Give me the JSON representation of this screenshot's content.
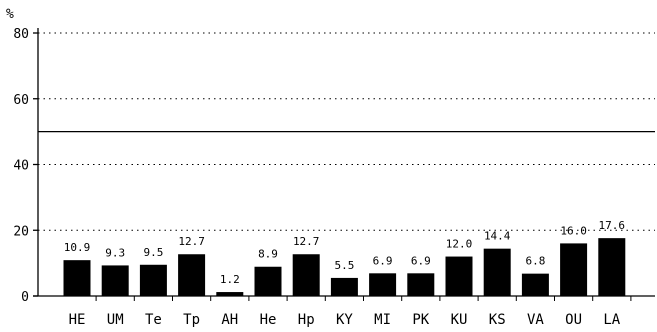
{
  "chart_data": {
    "type": "bar",
    "title": "",
    "xlabel": "",
    "ylabel": "%",
    "ylim": [
      0,
      80
    ],
    "yticks": [
      0,
      20,
      40,
      60,
      80
    ],
    "grid": "horizontal dotted",
    "reference_line": 50,
    "categories": [
      "HE",
      "UM",
      "Te",
      "Tp",
      "AH",
      "He",
      "Hp",
      "KY",
      "MI",
      "PK",
      "KU",
      "KS",
      "VA",
      "OU",
      "LA"
    ],
    "values": [
      10.9,
      9.3,
      9.5,
      12.7,
      1.2,
      8.9,
      12.7,
      5.5,
      6.9,
      6.9,
      12.0,
      14.4,
      6.8,
      16.0,
      17.6
    ],
    "value_labels": [
      "10.9",
      "9.3",
      "9.5",
      "12.7",
      "1.2",
      "8.9",
      "12.7",
      "5.5",
      "6.9",
      "6.9",
      "12.0",
      "14.4",
      "6.8",
      "16.0",
      "17.6"
    ],
    "bar_color": "#000000"
  }
}
